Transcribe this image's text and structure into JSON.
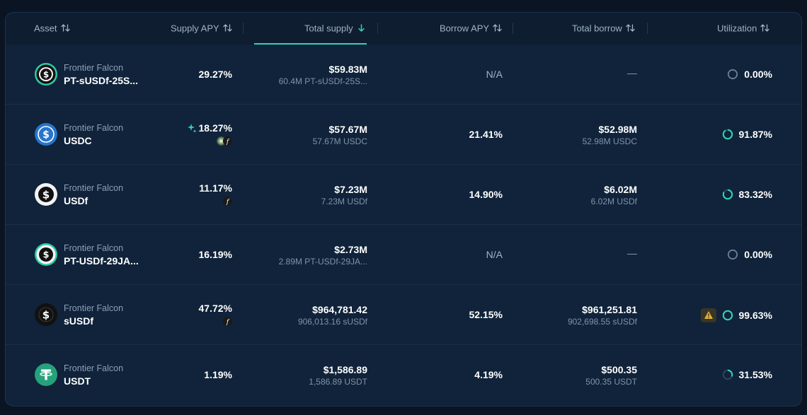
{
  "columns": {
    "asset": "Asset",
    "supply_apy": "Supply APY",
    "total_supply": "Total supply",
    "borrow_apy": "Borrow APY",
    "total_borrow": "Total borrow",
    "utilization": "Utilization"
  },
  "sorted_column": "total_supply",
  "colors": {
    "accent": "#33d3b3",
    "background": "#0f2238",
    "header_background": "#0e1d30",
    "muted_text": "#7f93aa"
  },
  "rows": [
    {
      "protocol": "Frontier Falcon",
      "symbol": "PT-sUSDf-25S...",
      "icon": "pt-susdf-token-icon",
      "supply_apy": "29.27%",
      "has_boost": false,
      "rewards": [],
      "total_supply": "$59.83M",
      "total_supply_native": "60.4M PT-sUSDf-25S...",
      "borrow_apy": "N/A",
      "total_borrow": "—",
      "total_borrow_native": "",
      "utilization": "0.00%",
      "utilization_fraction": 0.0,
      "warning": false
    },
    {
      "protocol": "Frontier Falcon",
      "symbol": "USDC",
      "icon": "usdc-token-icon",
      "supply_apy": "18.27%",
      "has_boost": true,
      "rewards": [
        "reward-token-icon",
        "falcon-reward-icon"
      ],
      "total_supply": "$57.67M",
      "total_supply_native": "57.67M USDC",
      "borrow_apy": "21.41%",
      "total_borrow": "$52.98M",
      "total_borrow_native": "52.98M USDC",
      "utilization": "91.87%",
      "utilization_fraction": 0.9187,
      "warning": false
    },
    {
      "protocol": "Frontier Falcon",
      "symbol": "USDf",
      "icon": "usdf-token-icon",
      "supply_apy": "11.17%",
      "has_boost": false,
      "rewards": [
        "falcon-reward-icon"
      ],
      "total_supply": "$7.23M",
      "total_supply_native": "7.23M USDf",
      "borrow_apy": "14.90%",
      "total_borrow": "$6.02M",
      "total_borrow_native": "6.02M USDf",
      "utilization": "83.32%",
      "utilization_fraction": 0.8332,
      "warning": false
    },
    {
      "protocol": "Frontier Falcon",
      "symbol": "PT-USDf-29JA...",
      "icon": "pt-usdf-token-icon",
      "supply_apy": "16.19%",
      "has_boost": false,
      "rewards": [],
      "total_supply": "$2.73M",
      "total_supply_native": "2.89M PT-USDf-29JA...",
      "borrow_apy": "N/A",
      "total_borrow": "—",
      "total_borrow_native": "",
      "utilization": "0.00%",
      "utilization_fraction": 0.0,
      "warning": false
    },
    {
      "protocol": "Frontier Falcon",
      "symbol": "sUSDf",
      "icon": "susdf-token-icon",
      "supply_apy": "47.72%",
      "has_boost": false,
      "rewards": [
        "falcon-reward-icon"
      ],
      "total_supply": "$964,781.42",
      "total_supply_native": "906,013.16 sUSDf",
      "borrow_apy": "52.15%",
      "total_borrow": "$961,251.81",
      "total_borrow_native": "902,698.55 sUSDf",
      "utilization": "99.63%",
      "utilization_fraction": 0.9963,
      "warning": true
    },
    {
      "protocol": "Frontier Falcon",
      "symbol": "USDT",
      "icon": "usdt-token-icon",
      "supply_apy": "1.19%",
      "has_boost": false,
      "rewards": [],
      "total_supply": "$1,586.89",
      "total_supply_native": "1,586.89 USDT",
      "borrow_apy": "4.19%",
      "total_borrow": "$500.35",
      "total_borrow_native": "500.35 USDT",
      "utilization": "31.53%",
      "utilization_fraction": 0.3153,
      "warning": false
    }
  ]
}
